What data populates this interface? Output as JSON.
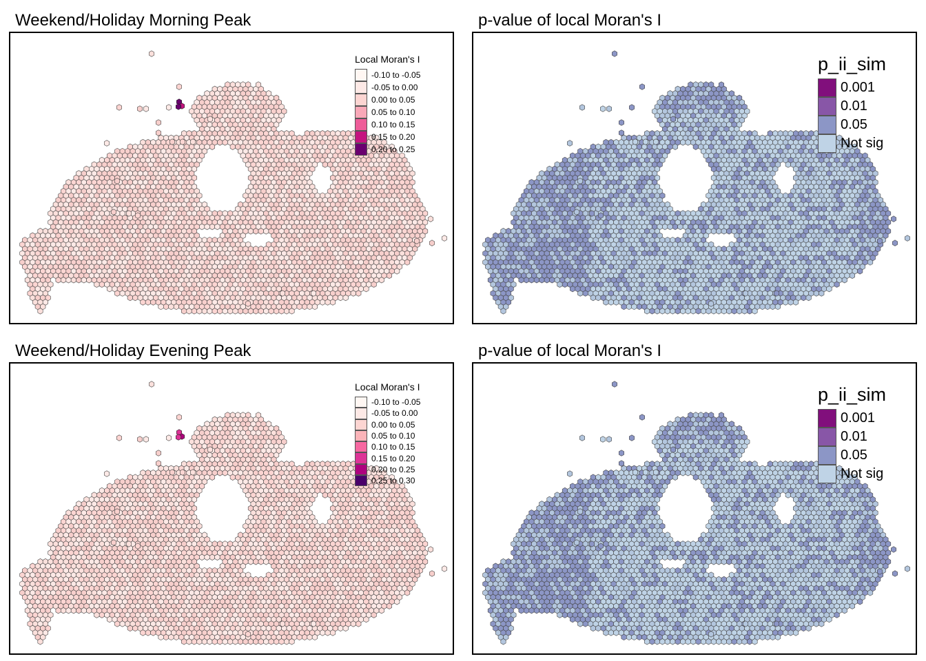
{
  "panels": [
    {
      "title": "Weekend/Holiday Morning Peak",
      "legend": {
        "title": "Local Moran's I",
        "classes": [
          {
            "label": "-0.10 to -0.05",
            "color": "#fff7f3"
          },
          {
            "label": "-0.05 to 0.00",
            "color": "#fde9e6"
          },
          {
            "label": "0.00 to 0.05",
            "color": "#fcd5d2"
          },
          {
            "label": "0.05 to 0.10",
            "color": "#f9a8b8"
          },
          {
            "label": "0.10 to 0.15",
            "color": "#ee5d99"
          },
          {
            "label": "0.15 to 0.20",
            "color": "#c4137f"
          },
          {
            "label": "0.20 to 0.25",
            "color": "#6a006f"
          }
        ]
      },
      "hex_palette": [
        "#fde9e6",
        "#fcd5d2",
        "#fbe0dc",
        "#f7cfcc"
      ],
      "hotspot_colors": [
        "#6a006f",
        "#c4137f"
      ]
    },
    {
      "title": "p-value of local Moran's I",
      "legend": {
        "title": "p_ii_sim",
        "classes": [
          {
            "label": "0.001",
            "color": "#810f7c"
          },
          {
            "label": "0.01",
            "color": "#8856a7"
          },
          {
            "label": "0.05",
            "color": "#8c96c6"
          },
          {
            "label": "Not sig",
            "color": "#bfd3e6"
          }
        ]
      },
      "hex_palette": [
        "#bfd3e6",
        "#bfd3e6",
        "#b3c6de",
        "#8c96c6"
      ]
    },
    {
      "title": "Weekend/Holiday Evening Peak",
      "legend": {
        "title": "Local Moran's I",
        "classes": [
          {
            "label": "-0.10 to -0.05",
            "color": "#fff7f3"
          },
          {
            "label": "-0.05 to 0.00",
            "color": "#fde9e6"
          },
          {
            "label": "0.00 to 0.05",
            "color": "#fcd5d2"
          },
          {
            "label": "0.05 to 0.10",
            "color": "#fbb4b9"
          },
          {
            "label": "0.10 to 0.15",
            "color": "#f768a1"
          },
          {
            "label": "0.15 to 0.20",
            "color": "#dd3497"
          },
          {
            "label": "0.20 to 0.25",
            "color": "#ae017e"
          },
          {
            "label": "0.25 to 0.30",
            "color": "#49006a"
          }
        ]
      },
      "hex_palette": [
        "#fde9e6",
        "#fcd5d2",
        "#fbe0dc",
        "#f7cfcc"
      ],
      "hotspot_colors": [
        "#dd3497",
        "#ae017e"
      ]
    },
    {
      "title": "p-value of local Moran's I",
      "legend": {
        "title": "p_ii_sim",
        "classes": [
          {
            "label": "0.001",
            "color": "#810f7c"
          },
          {
            "label": "0.01",
            "color": "#8856a7"
          },
          {
            "label": "0.05",
            "color": "#8c96c6"
          },
          {
            "label": "Not sig",
            "color": "#bfd3e6"
          }
        ]
      },
      "hex_palette": [
        "#bfd3e6",
        "#bfd3e6",
        "#b3c6de",
        "#8c96c6"
      ]
    }
  ]
}
